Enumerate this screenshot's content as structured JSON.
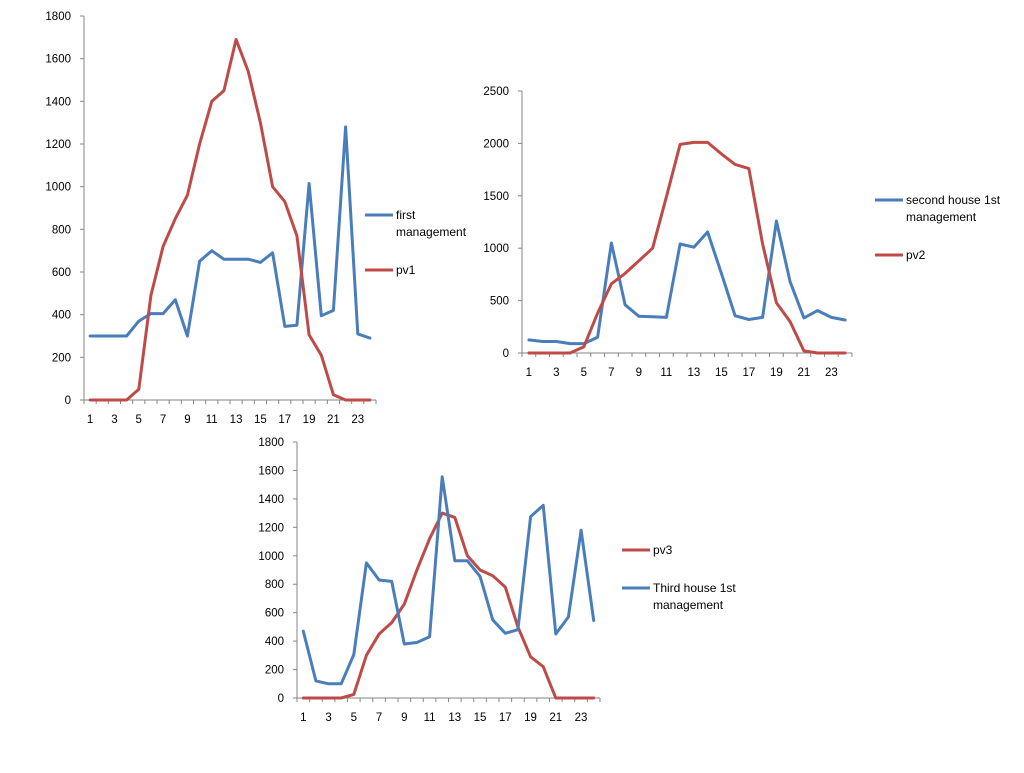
{
  "colors": {
    "blue": "#4a7ebb",
    "red": "#be4b48",
    "axis": "#868686"
  },
  "chart_data": [
    {
      "type": "line",
      "x": [
        1,
        2,
        3,
        4,
        5,
        6,
        7,
        8,
        9,
        10,
        11,
        12,
        13,
        14,
        15,
        16,
        17,
        18,
        19,
        20,
        21,
        22,
        23,
        24
      ],
      "x_tick_labels": [
        "1",
        "3",
        "5",
        "7",
        "9",
        "11",
        "13",
        "15",
        "17",
        "19",
        "21",
        "23"
      ],
      "y_tick_labels": [
        "0",
        "200",
        "400",
        "600",
        "800",
        "1000",
        "1200",
        "1400",
        "1600",
        "1800"
      ],
      "ylim": [
        0,
        1800
      ],
      "legend_position": "right",
      "series": [
        {
          "name_lines": [
            "first",
            "management"
          ],
          "color": "#4a7ebb",
          "values": [
            300,
            300,
            300,
            300,
            370,
            405,
            405,
            470,
            300,
            650,
            700,
            660,
            660,
            660,
            645,
            690,
            345,
            350,
            1015,
            395,
            420,
            1280,
            310,
            290
          ]
        },
        {
          "name_lines": [
            "pv1"
          ],
          "color": "#be4b48",
          "values": [
            0,
            0,
            0,
            0,
            50,
            490,
            720,
            850,
            960,
            1200,
            1400,
            1450,
            1690,
            1540,
            1300,
            1000,
            930,
            770,
            305,
            210,
            25,
            0,
            0,
            0
          ]
        }
      ]
    },
    {
      "type": "line",
      "x": [
        1,
        2,
        3,
        4,
        5,
        6,
        7,
        8,
        9,
        10,
        11,
        12,
        13,
        14,
        15,
        16,
        17,
        18,
        19,
        20,
        21,
        22,
        23,
        24
      ],
      "x_tick_labels": [
        "1",
        "3",
        "5",
        "7",
        "9",
        "11",
        "13",
        "15",
        "17",
        "19",
        "21",
        "23"
      ],
      "y_tick_labels": [
        "0",
        "500",
        "1000",
        "1500",
        "2000",
        "2500"
      ],
      "ylim": [
        0,
        2500
      ],
      "legend_position": "right",
      "series": [
        {
          "name_lines": [
            "second house 1st",
            "management"
          ],
          "color": "#4a7ebb",
          "values": [
            125,
            110,
            110,
            90,
            90,
            150,
            1050,
            460,
            350,
            345,
            340,
            1040,
            1010,
            1155,
            760,
            355,
            320,
            340,
            1260,
            680,
            335,
            405,
            340,
            315
          ]
        },
        {
          "name_lines": [
            "pv2"
          ],
          "color": "#be4b48",
          "values": [
            0,
            0,
            0,
            0,
            60,
            380,
            660,
            760,
            880,
            1000,
            1490,
            1990,
            2010,
            2010,
            1900,
            1800,
            1760,
            1040,
            480,
            300,
            20,
            0,
            0,
            0
          ]
        }
      ]
    },
    {
      "type": "line",
      "x": [
        1,
        2,
        3,
        4,
        5,
        6,
        7,
        8,
        9,
        10,
        11,
        12,
        13,
        14,
        15,
        16,
        17,
        18,
        19,
        20,
        21,
        22,
        23,
        24
      ],
      "x_tick_labels": [
        "1",
        "3",
        "5",
        "7",
        "9",
        "11",
        "13",
        "15",
        "17",
        "19",
        "21",
        "23"
      ],
      "y_tick_labels": [
        "0",
        "200",
        "400",
        "600",
        "800",
        "1000",
        "1200",
        "1400",
        "1600",
        "1800"
      ],
      "ylim": [
        0,
        1800
      ],
      "legend_position": "right",
      "series": [
        {
          "name_lines": [
            "pv3"
          ],
          "color": "#be4b48",
          "values": [
            0,
            0,
            0,
            0,
            25,
            300,
            450,
            530,
            660,
            900,
            1120,
            1300,
            1270,
            1000,
            900,
            860,
            780,
            500,
            290,
            220,
            0,
            0,
            0,
            0
          ]
        },
        {
          "name_lines": [
            "Third house 1st",
            "management"
          ],
          "color": "#4a7ebb",
          "values": [
            470,
            120,
            100,
            100,
            305,
            950,
            830,
            820,
            380,
            390,
            430,
            1555,
            965,
            965,
            855,
            550,
            455,
            480,
            1275,
            1355,
            450,
            570,
            1180,
            545
          ]
        }
      ]
    }
  ]
}
